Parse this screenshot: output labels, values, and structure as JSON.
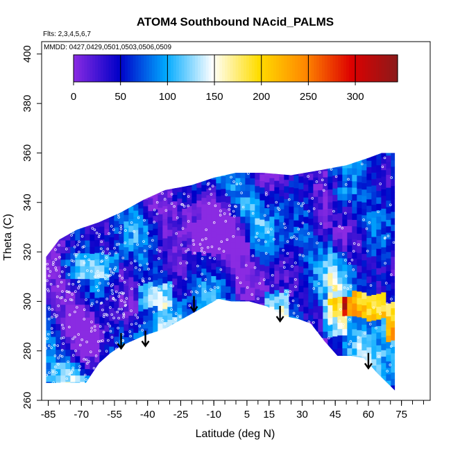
{
  "chart_data": {
    "type": "heatmap",
    "title": "ATOM4 Southbound NAcid_PALMS",
    "flights_note": "Flts: 2,3,4,5,6,7",
    "dates_note": "MMDD: 0427,0429,0501,0503,0506,0509",
    "xlabel": "Latitude (deg N)",
    "ylabel": "Theta (C)",
    "xlim": [
      -88,
      88
    ],
    "ylim": [
      260,
      405
    ],
    "x_ticks": [
      -85,
      -70,
      -55,
      -40,
      -25,
      -10,
      5,
      15,
      30,
      45,
      60,
      75
    ],
    "x_tick_labels": [
      "-85",
      "-70",
      "-55",
      "-40",
      "-25",
      "-10",
      "5",
      "15",
      "30",
      "45",
      "60",
      "75"
    ],
    "y_ticks": [
      260,
      280,
      300,
      320,
      340,
      360,
      380,
      400
    ],
    "y_tick_labels": [
      "260",
      "280",
      "300",
      "320",
      "340",
      "360",
      "380",
      "400"
    ],
    "colorbar": {
      "range": [
        0,
        345
      ],
      "ticks": [
        0,
        50,
        100,
        150,
        200,
        250,
        300
      ],
      "tick_labels": [
        "0",
        "50",
        "100",
        "150",
        "200",
        "250",
        "300"
      ],
      "colors": [
        "#8a2be2",
        "#0000c8",
        "#00aaff",
        "#ffffff",
        "#ffdd00",
        "#ff8800",
        "#dd0000",
        "#8b1a1a"
      ]
    },
    "coverage": {
      "bottom_boundary": [
        [
          -86,
          267
        ],
        [
          -68,
          267
        ],
        [
          -62,
          275
        ],
        [
          -57,
          279
        ],
        [
          -52,
          282
        ],
        [
          -42,
          286
        ],
        [
          -32,
          289
        ],
        [
          -22,
          294
        ],
        [
          -12,
          299
        ],
        [
          -8,
          301
        ],
        [
          -2,
          300
        ],
        [
          6,
          300
        ],
        [
          14,
          298
        ],
        [
          22,
          294
        ],
        [
          28,
          293
        ],
        [
          34,
          291
        ],
        [
          40,
          284
        ],
        [
          46,
          278
        ],
        [
          52,
          278
        ],
        [
          58,
          277
        ],
        [
          64,
          271
        ],
        [
          72,
          264
        ]
      ],
      "top_boundary": [
        [
          -86,
          318
        ],
        [
          -80,
          325
        ],
        [
          -72,
          329
        ],
        [
          -62,
          332
        ],
        [
          -52,
          336
        ],
        [
          -42,
          341
        ],
        [
          -32,
          345
        ],
        [
          -20,
          347
        ],
        [
          -10,
          350
        ],
        [
          0,
          352
        ],
        [
          12,
          352
        ],
        [
          25,
          351
        ],
        [
          38,
          353
        ],
        [
          50,
          355
        ],
        [
          60,
          358
        ],
        [
          66,
          360
        ],
        [
          72,
          360
        ]
      ]
    },
    "arrow_latitudes": [
      -52,
      -41,
      -19,
      20,
      60
    ],
    "arrow_thetas": [
      287,
      288,
      302,
      298,
      279
    ]
  }
}
